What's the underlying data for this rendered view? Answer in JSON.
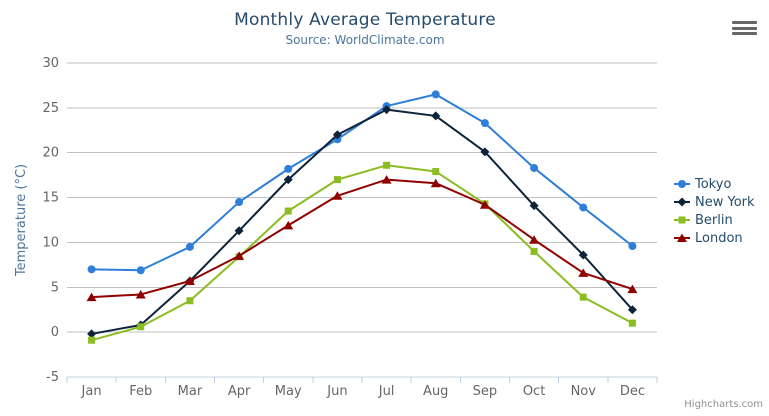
{
  "header": {
    "title": "Monthly Average Temperature",
    "subtitle": "Source: WorldClimate.com"
  },
  "credits": "Highcharts.com",
  "colors": {
    "title": "#274b6d",
    "subtitle": "#4d759e",
    "axis_label": "#666666",
    "axis_title": "#4d759e",
    "gridline": "#c0c0c0",
    "axis_line": "#c0d0e0",
    "legend_text": "#274b6d",
    "credits_text": "#909090",
    "menu_icon": "#666666"
  },
  "chart_data": {
    "type": "line",
    "title": "Monthly Average Temperature",
    "subtitle": "Source: WorldClimate.com",
    "categories": [
      "Jan",
      "Feb",
      "Mar",
      "Apr",
      "May",
      "Jun",
      "Jul",
      "Aug",
      "Sep",
      "Oct",
      "Nov",
      "Dec"
    ],
    "series": [
      {
        "name": "Tokyo",
        "color": "#2f7ed8",
        "marker": "circle",
        "values": [
          7.0,
          6.9,
          9.5,
          14.5,
          18.2,
          21.5,
          25.2,
          26.5,
          23.3,
          18.3,
          13.9,
          9.6
        ]
      },
      {
        "name": "New York",
        "color": "#0d233a",
        "marker": "diamond",
        "values": [
          -0.2,
          0.8,
          5.7,
          11.3,
          17.0,
          22.0,
          24.8,
          24.1,
          20.1,
          14.1,
          8.6,
          2.5
        ]
      },
      {
        "name": "Berlin",
        "color": "#8bbc21",
        "marker": "square",
        "values": [
          -0.9,
          0.6,
          3.5,
          8.4,
          13.5,
          17.0,
          18.6,
          17.9,
          14.3,
          9.0,
          3.9,
          1.0
        ]
      },
      {
        "name": "London",
        "color": "#910000",
        "marker": "triangle",
        "values": [
          3.9,
          4.2,
          5.7,
          8.5,
          11.9,
          15.2,
          17.0,
          16.6,
          14.2,
          10.3,
          6.6,
          4.8
        ]
      }
    ],
    "xlabel": "",
    "ylabel": "Temperature (°C)",
    "ylim": [
      -5,
      30
    ],
    "ytick_step": 5,
    "grid": true,
    "legend_position": "right"
  }
}
